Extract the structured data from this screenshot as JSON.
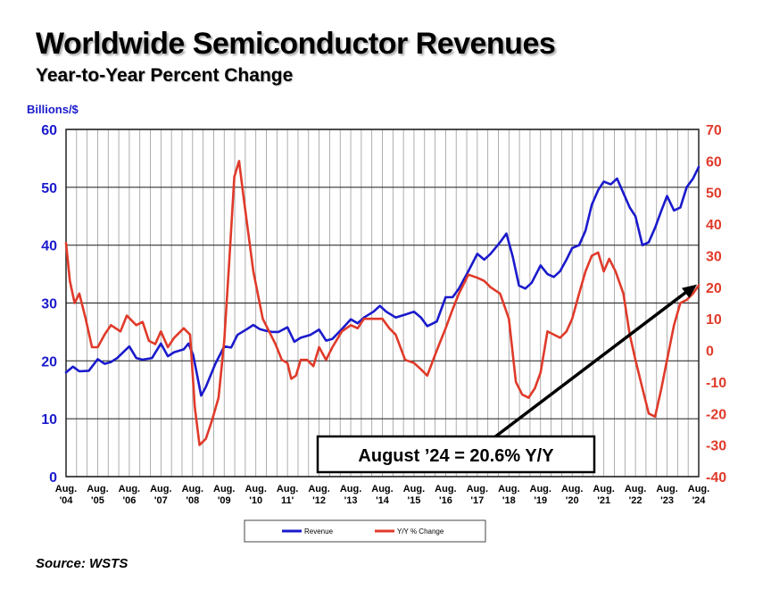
{
  "title": "Worldwide Semiconductor Revenues",
  "subtitle": "Year-to-Year Percent Change",
  "source": "Source: WSTS",
  "colors": {
    "revenue": "#1a1acc",
    "yoy": "#e03a2a",
    "grid": "#555555",
    "axis_left": "#1a1acc",
    "axis_right": "#e03a2a"
  },
  "chart_data": {
    "type": "line",
    "left_axis_label": "Billions/$",
    "left_ylim": [
      0,
      60
    ],
    "left_ticks": [
      "0",
      "10",
      "20",
      "30",
      "40",
      "50",
      "60"
    ],
    "right_ylim": [
      -40,
      70
    ],
    "right_ticks": [
      "-40",
      "-30",
      "-20",
      "-10",
      "0",
      "10",
      "20",
      "30",
      "40",
      "50",
      "60",
      "70"
    ],
    "x_ticks": [
      [
        "Aug.",
        "'04"
      ],
      [
        "Aug.",
        "'05"
      ],
      [
        "Aug.",
        "'06"
      ],
      [
        "Aug.",
        "'07"
      ],
      [
        "Aug.",
        "'08"
      ],
      [
        "Aug.",
        "'09"
      ],
      [
        "Aug.",
        "'10"
      ],
      [
        "Aug.",
        "11'"
      ],
      [
        "Aug.",
        "'12"
      ],
      [
        "Aug.",
        "'13"
      ],
      [
        "Aug.",
        "'14"
      ],
      [
        "Aug.",
        "'15"
      ],
      [
        "Aug.",
        "'16"
      ],
      [
        "Aug.",
        "'17"
      ],
      [
        "Aug.",
        "'18"
      ],
      [
        "Aug.",
        "'19"
      ],
      [
        "Aug.",
        "'20"
      ],
      [
        "Aug.",
        "'21"
      ],
      [
        "Aug.",
        "'22"
      ],
      [
        "Aug.",
        "'23"
      ],
      [
        "Aug.",
        "'24"
      ]
    ],
    "grid": true,
    "legend_position": "bottom-center",
    "series": [
      {
        "name": "Revenue",
        "axis": "left",
        "points": [
          [
            2004.58,
            18
          ],
          [
            2004.8,
            19
          ],
          [
            2005.0,
            18.2
          ],
          [
            2005.3,
            18.3
          ],
          [
            2005.58,
            20.3
          ],
          [
            2005.8,
            19.5
          ],
          [
            2006.0,
            19.8
          ],
          [
            2006.2,
            20.5
          ],
          [
            2006.58,
            22.5
          ],
          [
            2006.8,
            20.5
          ],
          [
            2007.0,
            20.2
          ],
          [
            2007.3,
            20.5
          ],
          [
            2007.58,
            23
          ],
          [
            2007.8,
            20.8
          ],
          [
            2008.0,
            21.5
          ],
          [
            2008.3,
            22
          ],
          [
            2008.45,
            23
          ],
          [
            2008.6,
            21
          ],
          [
            2008.85,
            14
          ],
          [
            2009.0,
            15.5
          ],
          [
            2009.3,
            19.5
          ],
          [
            2009.58,
            22.5
          ],
          [
            2009.8,
            22.3
          ],
          [
            2010.0,
            24.5
          ],
          [
            2010.3,
            25.5
          ],
          [
            2010.5,
            26.2
          ],
          [
            2010.7,
            25.5
          ],
          [
            2010.9,
            25.2
          ],
          [
            2011.1,
            25
          ],
          [
            2011.3,
            25
          ],
          [
            2011.58,
            25.8
          ],
          [
            2011.8,
            23.3
          ],
          [
            2012.0,
            24
          ],
          [
            2012.3,
            24.5
          ],
          [
            2012.58,
            25.4
          ],
          [
            2012.8,
            23.5
          ],
          [
            2013.0,
            23.8
          ],
          [
            2013.3,
            25.5
          ],
          [
            2013.58,
            27.2
          ],
          [
            2013.8,
            26.5
          ],
          [
            2014.0,
            27.5
          ],
          [
            2014.3,
            28.5
          ],
          [
            2014.5,
            29.5
          ],
          [
            2014.7,
            28.5
          ],
          [
            2015.0,
            27.5
          ],
          [
            2015.3,
            28
          ],
          [
            2015.58,
            28.5
          ],
          [
            2015.8,
            27.5
          ],
          [
            2016.0,
            26
          ],
          [
            2016.3,
            26.8
          ],
          [
            2016.58,
            31
          ],
          [
            2016.8,
            31
          ],
          [
            2017.0,
            32.5
          ],
          [
            2017.3,
            35.5
          ],
          [
            2017.58,
            38.5
          ],
          [
            2017.8,
            37.5
          ],
          [
            2018.0,
            38.5
          ],
          [
            2018.3,
            40.5
          ],
          [
            2018.5,
            42
          ],
          [
            2018.7,
            38
          ],
          [
            2018.9,
            33
          ],
          [
            2019.1,
            32.5
          ],
          [
            2019.3,
            33.5
          ],
          [
            2019.58,
            36.5
          ],
          [
            2019.8,
            35
          ],
          [
            2020.0,
            34.5
          ],
          [
            2020.2,
            35.5
          ],
          [
            2020.4,
            37.5
          ],
          [
            2020.58,
            39.5
          ],
          [
            2020.8,
            40
          ],
          [
            2021.0,
            42.5
          ],
          [
            2021.2,
            47
          ],
          [
            2021.4,
            49.5
          ],
          [
            2021.58,
            51
          ],
          [
            2021.8,
            50.5
          ],
          [
            2022.0,
            51.5
          ],
          [
            2022.2,
            49
          ],
          [
            2022.4,
            46.5
          ],
          [
            2022.58,
            45
          ],
          [
            2022.8,
            40
          ],
          [
            2023.0,
            40.5
          ],
          [
            2023.2,
            43
          ],
          [
            2023.4,
            46
          ],
          [
            2023.58,
            48.5
          ],
          [
            2023.8,
            46
          ],
          [
            2024.0,
            46.5
          ],
          [
            2024.2,
            50
          ],
          [
            2024.4,
            51.5
          ],
          [
            2024.58,
            53.5
          ]
        ]
      },
      {
        "name": "Y/Y % Change",
        "axis": "right",
        "points": [
          [
            2004.58,
            34
          ],
          [
            2004.7,
            22
          ],
          [
            2004.85,
            15
          ],
          [
            2005.0,
            18
          ],
          [
            2005.2,
            10
          ],
          [
            2005.4,
            1
          ],
          [
            2005.58,
            1
          ],
          [
            2005.8,
            5
          ],
          [
            2006.0,
            8
          ],
          [
            2006.3,
            6
          ],
          [
            2006.5,
            11
          ],
          [
            2006.8,
            8
          ],
          [
            2007.0,
            9
          ],
          [
            2007.2,
            3
          ],
          [
            2007.4,
            2
          ],
          [
            2007.58,
            6
          ],
          [
            2007.8,
            1
          ],
          [
            2008.0,
            4
          ],
          [
            2008.3,
            7
          ],
          [
            2008.5,
            5
          ],
          [
            2008.65,
            -18
          ],
          [
            2008.8,
            -30
          ],
          [
            2009.0,
            -28
          ],
          [
            2009.2,
            -22
          ],
          [
            2009.4,
            -15
          ],
          [
            2009.58,
            3
          ],
          [
            2009.75,
            30
          ],
          [
            2009.9,
            55
          ],
          [
            2010.05,
            60
          ],
          [
            2010.2,
            48
          ],
          [
            2010.5,
            25
          ],
          [
            2010.8,
            10
          ],
          [
            2011.0,
            6
          ],
          [
            2011.2,
            2
          ],
          [
            2011.4,
            -3
          ],
          [
            2011.58,
            -4
          ],
          [
            2011.7,
            -9
          ],
          [
            2011.85,
            -8
          ],
          [
            2012.0,
            -3
          ],
          [
            2012.2,
            -3
          ],
          [
            2012.4,
            -5
          ],
          [
            2012.58,
            1
          ],
          [
            2012.8,
            -3
          ],
          [
            2013.0,
            1
          ],
          [
            2013.3,
            6
          ],
          [
            2013.58,
            8
          ],
          [
            2013.8,
            7
          ],
          [
            2014.0,
            10
          ],
          [
            2014.3,
            10
          ],
          [
            2014.58,
            10
          ],
          [
            2014.8,
            7
          ],
          [
            2015.0,
            5
          ],
          [
            2015.3,
            -3
          ],
          [
            2015.58,
            -4
          ],
          [
            2015.8,
            -6
          ],
          [
            2016.0,
            -8
          ],
          [
            2016.3,
            0
          ],
          [
            2016.58,
            7
          ],
          [
            2016.8,
            13
          ],
          [
            2017.0,
            18
          ],
          [
            2017.3,
            24
          ],
          [
            2017.58,
            23
          ],
          [
            2017.8,
            22
          ],
          [
            2018.0,
            20
          ],
          [
            2018.3,
            18
          ],
          [
            2018.58,
            10
          ],
          [
            2018.8,
            -10
          ],
          [
            2019.0,
            -14
          ],
          [
            2019.2,
            -15
          ],
          [
            2019.4,
            -12
          ],
          [
            2019.58,
            -7
          ],
          [
            2019.8,
            6
          ],
          [
            2020.0,
            5
          ],
          [
            2020.2,
            4
          ],
          [
            2020.4,
            6
          ],
          [
            2020.58,
            10
          ],
          [
            2020.8,
            18
          ],
          [
            2021.0,
            25
          ],
          [
            2021.2,
            30
          ],
          [
            2021.4,
            31
          ],
          [
            2021.58,
            25
          ],
          [
            2021.75,
            29
          ],
          [
            2021.95,
            25
          ],
          [
            2022.2,
            18
          ],
          [
            2022.4,
            5
          ],
          [
            2022.58,
            -3
          ],
          [
            2022.8,
            -12
          ],
          [
            2023.0,
            -20
          ],
          [
            2023.2,
            -21
          ],
          [
            2023.4,
            -12
          ],
          [
            2023.58,
            -3
          ],
          [
            2023.8,
            8
          ],
          [
            2024.0,
            15
          ],
          [
            2024.2,
            16
          ],
          [
            2024.4,
            18
          ],
          [
            2024.58,
            20.6
          ]
        ]
      }
    ],
    "annotation": {
      "text": "August ’24 = 20.6% Y/Y",
      "arrow_target": [
        2024.58,
        20.6
      ]
    },
    "legend": [
      "Revenue",
      "Y/Y % Change"
    ]
  }
}
